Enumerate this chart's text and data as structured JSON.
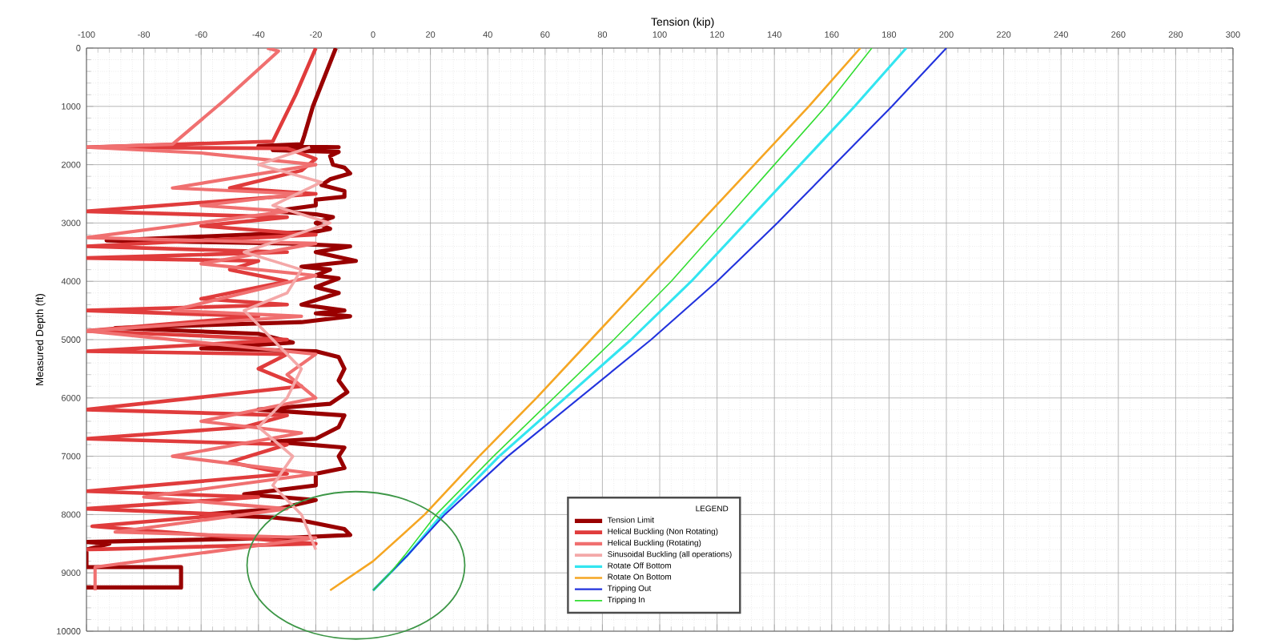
{
  "chart_data": {
    "type": "line",
    "xlabel": "Tension (kip)",
    "ylabel": "Measured Depth (ft)",
    "legend_title": "LEGEND",
    "xlim": [
      -100,
      300
    ],
    "xticks": [
      -100,
      -80,
      -60,
      -40,
      -20,
      0,
      20,
      40,
      60,
      80,
      100,
      120,
      140,
      160,
      180,
      200,
      220,
      240,
      260,
      280,
      300
    ],
    "ylim": [
      10000,
      0
    ],
    "yticks": [
      0,
      1000,
      2000,
      3000,
      4000,
      5000,
      6000,
      7000,
      8000,
      9000,
      10000
    ],
    "grid": true,
    "legend": "bottom",
    "marker": "none",
    "line_style": "solid",
    "series": [
      {
        "name": "Tension Limit",
        "color": "#990000",
        "x": [
          -13,
          -17,
          -21,
          -24,
          -25,
          -40,
          -12,
          -35,
          -12,
          -15,
          -14,
          -10,
          -8,
          -15,
          -18,
          -10,
          -10,
          -20,
          -20,
          -35,
          -20,
          -14,
          -20,
          -15,
          -20,
          -93,
          -30,
          -8,
          -20,
          -6,
          -25,
          -15,
          -20,
          -12,
          -20,
          -12,
          -25,
          -10,
          -20,
          -8,
          -25,
          -90,
          -40,
          -28,
          -60,
          -20,
          -12,
          -10,
          -12,
          -9,
          -15,
          -40,
          -10,
          -12,
          -20,
          -35,
          -10,
          -12,
          -10,
          -20,
          -20,
          -45,
          -20,
          -33,
          -60,
          -35,
          -25,
          -10,
          -8,
          -30,
          -100,
          -92,
          -100,
          -100,
          -67,
          -67,
          -100
        ],
        "values": [
          0,
          500,
          1000,
          1500,
          1650,
          1680,
          1700,
          1750,
          1780,
          1850,
          2000,
          2050,
          2150,
          2250,
          2350,
          2450,
          2550,
          2600,
          2700,
          2800,
          2850,
          2900,
          3000,
          3100,
          3150,
          3300,
          3350,
          3400,
          3500,
          3650,
          3750,
          3800,
          3900,
          3950,
          4100,
          4200,
          4400,
          4500,
          4550,
          4600,
          4700,
          4800,
          4900,
          5050,
          5150,
          5200,
          5300,
          5500,
          5700,
          5900,
          6100,
          6200,
          6300,
          6500,
          6700,
          6750,
          6850,
          7000,
          7200,
          7300,
          7500,
          7650,
          7750,
          7900,
          8000,
          8050,
          8100,
          8250,
          8350,
          8400,
          8470,
          8500,
          8600,
          8900,
          8900,
          9250,
          9250
        ]
      },
      {
        "name": "Helical Buckling (Non Rotating)",
        "color": "#e03c3c",
        "x": [
          -20,
          -27,
          -35,
          -100,
          -30,
          -20,
          -25,
          -50,
          -20,
          -100,
          -30,
          -60,
          -20,
          -100,
          -30,
          -100,
          -40,
          -50,
          -30,
          -60,
          -30,
          -100,
          -40,
          -100,
          -30,
          -100,
          -30,
          -40,
          -25,
          -100,
          -30,
          -45,
          -100,
          -30,
          -50,
          -30,
          -100,
          -40,
          -100,
          -50,
          -98,
          -20,
          -100
        ],
        "values": [
          0,
          800,
          1600,
          1700,
          1720,
          1900,
          2100,
          2400,
          2500,
          2800,
          2900,
          3050,
          3200,
          3400,
          3500,
          3600,
          3650,
          3800,
          4000,
          4300,
          4400,
          4500,
          4600,
          4850,
          5000,
          5200,
          5250,
          5500,
          5800,
          6200,
          6300,
          6500,
          6700,
          6800,
          7100,
          7300,
          7600,
          7700,
          7900,
          8000,
          8200,
          8500,
          8600
        ]
      },
      {
        "name": "Helical Buckling (Rotating)",
        "color": "#f07070",
        "x": [
          -37,
          -33,
          -52,
          -70,
          -100,
          -60,
          -20,
          -70,
          -25,
          -60,
          -30,
          -100,
          -20,
          -60,
          -20,
          -70,
          -25,
          -100,
          -20,
          -30,
          -20,
          -60,
          -25,
          -70,
          -20,
          -80,
          -30,
          -90,
          -20,
          -97,
          -97
        ],
        "values": [
          0,
          50,
          900,
          1650,
          1700,
          1800,
          2000,
          2400,
          2500,
          2700,
          2800,
          3250,
          3350,
          3700,
          3900,
          4500,
          4600,
          4850,
          5250,
          5600,
          6000,
          6400,
          6600,
          7000,
          7300,
          7700,
          7900,
          8300,
          8400,
          8900,
          9300
        ]
      },
      {
        "name": "Sinusoidal Buckling (all operations)",
        "color": "#f4a8a8",
        "x": [
          -22,
          -40,
          -18,
          -35,
          -15,
          -45,
          -25,
          -30,
          -45,
          -25,
          -30,
          -40,
          -28,
          -35,
          -25,
          -20
        ],
        "values": [
          1700,
          2000,
          2300,
          2700,
          3000,
          3500,
          3800,
          4200,
          4500,
          5500,
          6000,
          6500,
          7000,
          7500,
          8000,
          8600
        ]
      },
      {
        "name": "Rotate Off Bottom",
        "color": "#33e5f0",
        "x": [
          186,
          168,
          149,
          130,
          111,
          90,
          67,
          44,
          24,
          12,
          6,
          0
        ],
        "values": [
          0,
          1000,
          2000,
          3000,
          4000,
          5000,
          6000,
          7000,
          8000,
          8700,
          9000,
          9300
        ]
      },
      {
        "name": "Rotate On Bottom",
        "color": "#f5a623",
        "x": [
          170,
          152,
          133,
          114,
          95,
          76,
          57,
          37,
          18,
          0,
          -15
        ],
        "values": [
          0,
          1000,
          2000,
          3000,
          4000,
          5000,
          6000,
          7000,
          8000,
          8800,
          9300
        ]
      },
      {
        "name": "Tripping Out",
        "color": "#2233dd",
        "x": [
          200,
          181,
          161,
          141,
          120,
          97,
          72,
          47,
          25,
          12,
          6,
          0
        ],
        "values": [
          0,
          1000,
          2000,
          3000,
          4000,
          5000,
          6000,
          7000,
          8000,
          8700,
          9000,
          9300
        ]
      },
      {
        "name": "Tripping In",
        "color": "#33dd33",
        "x": [
          174,
          158,
          140,
          122,
          104,
          84,
          63,
          42,
          22,
          11,
          6,
          0
        ],
        "values": [
          0,
          1000,
          2000,
          3000,
          4000,
          5000,
          6000,
          7000,
          8000,
          8700,
          9000,
          9300
        ]
      }
    ]
  }
}
